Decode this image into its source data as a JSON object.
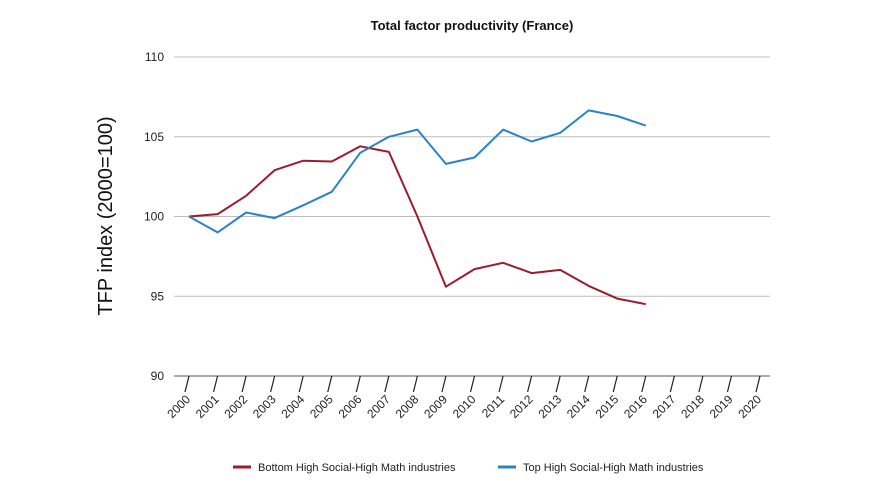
{
  "chart_data": {
    "type": "line",
    "title": "Total factor productivity (France)",
    "xlabel": "",
    "ylabel": "TFP index (2000=100)",
    "ylim": [
      90,
      110
    ],
    "yticks": [
      90,
      95,
      100,
      105,
      110
    ],
    "grid": true,
    "legend_position": "bottom",
    "x": [
      "2000",
      "2001",
      "2002",
      "2003",
      "2004",
      "2005",
      "2006",
      "2007",
      "2008",
      "2009",
      "2010",
      "2011",
      "2012",
      "2013",
      "2014",
      "2015",
      "2016",
      "2017",
      "2018",
      "2019",
      "2020"
    ],
    "series": [
      {
        "name": "Bottom High Social-High Math industries",
        "color": "#9b1c2e",
        "values": [
          100.0,
          100.15,
          101.3,
          102.9,
          103.5,
          103.45,
          104.4,
          104.05,
          100.0,
          95.6,
          96.7,
          97.1,
          96.45,
          96.65,
          95.65,
          94.85,
          94.5,
          null,
          null,
          null,
          null
        ]
      },
      {
        "name": "Top High Social-High Math industries",
        "color": "#2a84c0",
        "values": [
          100.0,
          99.0,
          100.25,
          99.9,
          100.7,
          101.55,
          104.0,
          105.0,
          105.45,
          103.3,
          103.7,
          105.45,
          104.7,
          105.25,
          106.65,
          106.3,
          105.7,
          null,
          null,
          null,
          null
        ]
      }
    ]
  }
}
